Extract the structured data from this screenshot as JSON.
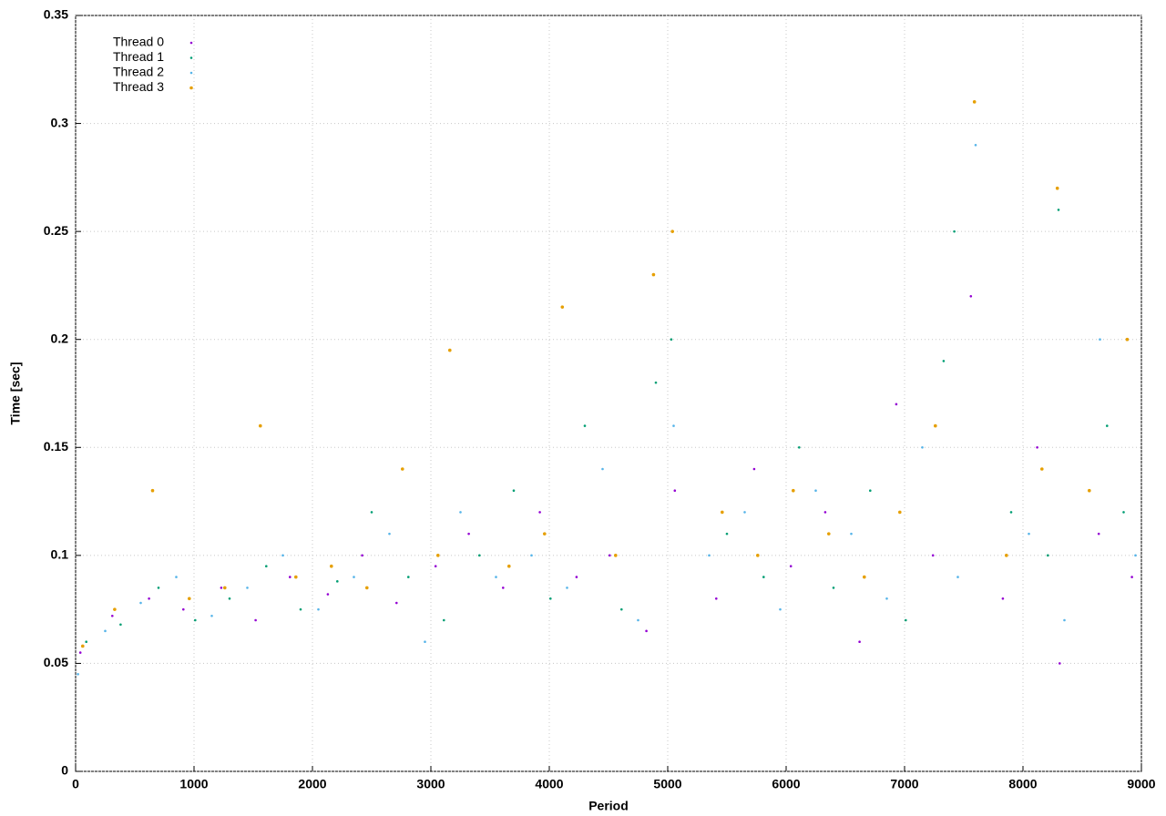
{
  "chart_data": {
    "type": "scatter",
    "xlabel": "Period",
    "ylabel": "Time [sec]",
    "xlim": [
      0,
      9000
    ],
    "xticks": [
      0,
      1000,
      2000,
      3000,
      4000,
      5000,
      6000,
      7000,
      8000,
      9000
    ],
    "ylim": [
      0,
      0.35
    ],
    "yticks": [
      0,
      0.05,
      0.1,
      0.15,
      0.2,
      0.25,
      0.3,
      0.35
    ],
    "grid": true,
    "legend": "upper left",
    "series": [
      {
        "name": "Thread 0",
        "color": "#9400d3",
        "x": [
          40,
          310,
          620,
          910,
          1230,
          1520,
          1810,
          2130,
          2420,
          2710,
          3040,
          3320,
          3610,
          3920,
          4230,
          4510,
          4820,
          5060,
          5410,
          5730,
          6040,
          6330,
          6620,
          6930,
          7240,
          7560,
          7830,
          8120,
          8310,
          8640,
          8920
        ],
        "values": [
          0.055,
          0.072,
          0.08,
          0.075,
          0.085,
          0.07,
          0.09,
          0.082,
          0.1,
          0.078,
          0.095,
          0.11,
          0.085,
          0.12,
          0.09,
          0.1,
          0.065,
          0.13,
          0.08,
          0.14,
          0.095,
          0.12,
          0.06,
          0.17,
          0.1,
          0.22,
          0.08,
          0.15,
          0.05,
          0.11,
          0.09
        ]
      },
      {
        "name": "Thread 1",
        "color": "#009e73",
        "x": [
          90,
          380,
          700,
          1010,
          1300,
          1610,
          1900,
          2210,
          2500,
          2810,
          3110,
          3410,
          3700,
          4010,
          4300,
          4610,
          4900,
          5030,
          5500,
          5810,
          6110,
          6400,
          6710,
          7010,
          7330,
          7420,
          7900,
          8210,
          8300,
          8710,
          8850
        ],
        "values": [
          0.06,
          0.068,
          0.085,
          0.07,
          0.08,
          0.095,
          0.075,
          0.088,
          0.12,
          0.09,
          0.07,
          0.1,
          0.13,
          0.08,
          0.16,
          0.075,
          0.18,
          0.2,
          0.11,
          0.09,
          0.15,
          0.085,
          0.13,
          0.07,
          0.19,
          0.25,
          0.12,
          0.1,
          0.26,
          0.16,
          0.12
        ]
      },
      {
        "name": "Thread 2",
        "color": "#56b4e9",
        "x": [
          20,
          250,
          550,
          850,
          1150,
          1450,
          1750,
          2050,
          2350,
          2650,
          2950,
          3250,
          3550,
          3850,
          4150,
          4450,
          4750,
          5050,
          5350,
          5650,
          5950,
          6250,
          6550,
          6850,
          7150,
          7450,
          7600,
          8050,
          8350,
          8650,
          8950
        ],
        "values": [
          0.045,
          0.065,
          0.078,
          0.09,
          0.072,
          0.085,
          0.1,
          0.075,
          0.09,
          0.11,
          0.06,
          0.12,
          0.09,
          0.1,
          0.085,
          0.14,
          0.07,
          0.16,
          0.1,
          0.12,
          0.075,
          0.13,
          0.11,
          0.08,
          0.15,
          0.09,
          0.29,
          0.11,
          0.07,
          0.2,
          0.1
        ]
      },
      {
        "name": "Thread 3",
        "color": "#e69f00",
        "x": [
          60,
          330,
          650,
          960,
          1260,
          1560,
          1860,
          2160,
          2460,
          2760,
          3060,
          3160,
          3660,
          3960,
          4110,
          4560,
          4880,
          5040,
          5460,
          5760,
          6060,
          6360,
          6660,
          6960,
          7260,
          7590,
          7860,
          8160,
          8290,
          8560,
          8880
        ],
        "values": [
          0.058,
          0.075,
          0.13,
          0.08,
          0.085,
          0.16,
          0.09,
          0.095,
          0.085,
          0.14,
          0.1,
          0.195,
          0.095,
          0.11,
          0.215,
          0.1,
          0.23,
          0.25,
          0.12,
          0.1,
          0.13,
          0.11,
          0.09,
          0.12,
          0.16,
          0.31,
          0.1,
          0.14,
          0.27,
          0.13,
          0.2
        ]
      }
    ]
  }
}
